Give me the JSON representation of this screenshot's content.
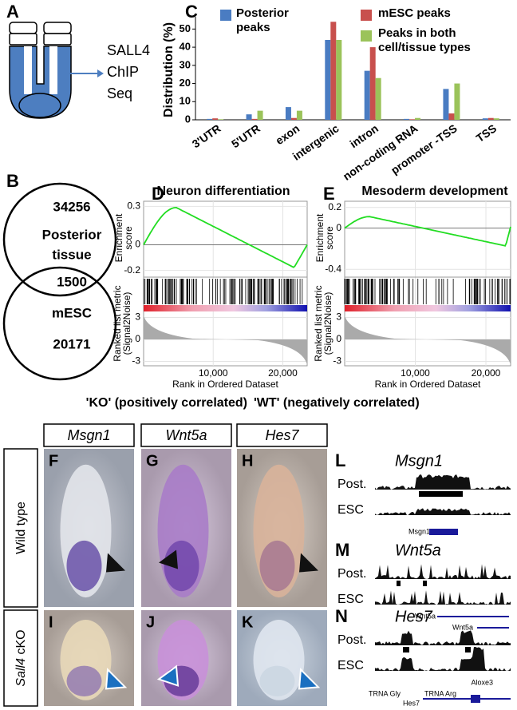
{
  "panel_a": {
    "label": "A",
    "text": [
      "SALL4",
      "ChIP",
      "Seq"
    ]
  },
  "panel_b": {
    "label": "B",
    "posterior_count": 34256,
    "posterior_label": [
      "Posterior",
      "tissue"
    ],
    "overlap_count": 1500,
    "mesc_label": "mESC",
    "mesc_count": 20171
  },
  "chart_data": {
    "type": "bar",
    "label": "C",
    "ylabel": "Distribution (%)",
    "categories": [
      "3'UTR",
      "5'UTR",
      "exon",
      "intergenic",
      "intron",
      "non-coding RNA",
      "promoter -TSS",
      "TSS"
    ],
    "series": [
      {
        "name": "Posterior peaks",
        "color": "#4a7cc2",
        "values": [
          0.5,
          3,
          7,
          44,
          27,
          0.5,
          17,
          0.8
        ]
      },
      {
        "name": "mESC peaks",
        "color": "#c8504d",
        "values": [
          0.8,
          0.5,
          1,
          54,
          40,
          0.3,
          3.5,
          1
        ]
      },
      {
        "name": "Peaks in both cell/tissue types",
        "color": "#9bc35a",
        "values": [
          0.3,
          5,
          5,
          44,
          23,
          1,
          20,
          0.8
        ]
      }
    ],
    "ylim": [
      0,
      55
    ],
    "yticks": [
      0,
      10,
      20,
      30,
      40,
      50
    ]
  },
  "gsea": [
    {
      "label": "D",
      "title": "Neuron differentiation",
      "es_label": [
        "Enrichment",
        "score"
      ],
      "es_ylim": [
        -0.24,
        0.34
      ],
      "es_ticks": [
        0.3,
        0,
        -0.2
      ],
      "metric_label": [
        "Ranked list metric",
        "(Signal2Noise)"
      ],
      "metric_ylim": [
        -3.6,
        3.6
      ],
      "metric_ticks": [
        3,
        0,
        -3
      ],
      "xlim": [
        0,
        23500
      ],
      "xticks": [
        {
          "value": 10000,
          "label": "10,000"
        },
        {
          "value": 20000,
          "label": "20,000"
        }
      ],
      "xlabel": "Rank in Ordered Dataset"
    },
    {
      "label": "E",
      "title": "Mesoderm development",
      "es_label": [
        "Enrichment",
        "score"
      ],
      "es_ylim": [
        -0.46,
        0.26
      ],
      "es_ticks": [
        0.2,
        0,
        -0.4
      ],
      "metric_label": [
        "Ranked list metric",
        "(Signal2Noise)"
      ],
      "metric_ylim": [
        -3.6,
        3.6
      ],
      "metric_ticks": [
        3,
        0,
        -3
      ],
      "xlim": [
        0,
        23500
      ],
      "xticks": [
        {
          "value": 10000,
          "label": "10,000"
        },
        {
          "value": 20000,
          "label": "20,000"
        }
      ],
      "xlabel": "Rank in Ordered Dataset"
    }
  ],
  "correlation": {
    "ko": "'KO' (positively correlated)",
    "wt": "'WT' (negatively correlated)"
  },
  "in_situ": {
    "genes": [
      "Msgn1",
      "Wnt5a",
      "Hes7"
    ],
    "rows": [
      {
        "label": "Wild type"
      },
      {
        "label_italic": "Sall4",
        "label": "cKO"
      }
    ],
    "panels": [
      "F",
      "G",
      "H",
      "I",
      "J",
      "K"
    ]
  },
  "tracks": [
    {
      "label": "L",
      "gene": "Msgn1",
      "rows": [
        "Post.",
        "ESC"
      ],
      "annotations": [
        "Msgn1"
      ]
    },
    {
      "label": "M",
      "gene": "Wnt5a",
      "rows": [
        "Post.",
        "ESC"
      ],
      "annotations": [
        "Wnt5a",
        "Wnt5a"
      ]
    },
    {
      "label": "N",
      "gene": "Hes7",
      "rows": [
        "Post.",
        "ESC"
      ],
      "annotations": [
        "TRNA Gly",
        "TRNA Arg",
        "Aloxe3",
        "Hes7"
      ]
    }
  ]
}
